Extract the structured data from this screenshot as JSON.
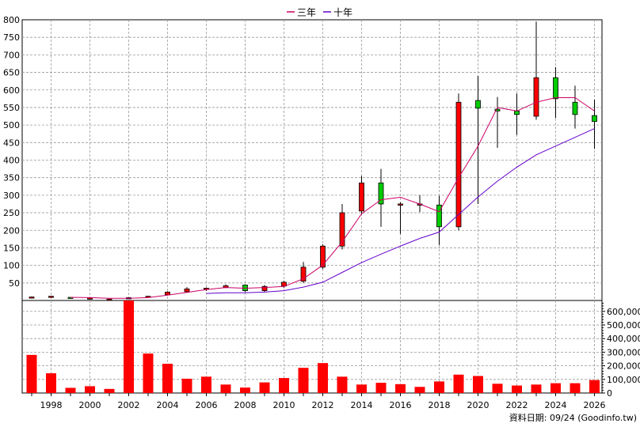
{
  "legend": [
    {
      "label": "三年",
      "color": "#cc0066"
    },
    {
      "label": "十年",
      "color": "#6600cc"
    }
  ],
  "credit": "資料日期: 09/24 (Goodinfo.tw)",
  "colors": {
    "up": "#ff0000",
    "down": "#00cc00",
    "wick": "#000000",
    "volume": "#ff0000",
    "ma3": "#cc0066",
    "ma10": "#6600cc",
    "grid": "#999999"
  },
  "chart_data": [
    {
      "type": "candlestick",
      "ylim": [
        0,
        800
      ],
      "y_ticks": [
        50,
        100,
        150,
        200,
        250,
        300,
        350,
        400,
        450,
        500,
        550,
        600,
        650,
        700,
        750,
        800
      ],
      "x_tick_labels": [
        "1998",
        "2000",
        "2002",
        "2004",
        "2006",
        "2008",
        "2010",
        "2012",
        "2014",
        "2016",
        "2018",
        "2020",
        "2022",
        "2024",
        "2026"
      ],
      "candles": [
        {
          "year": 1997,
          "open": 10,
          "high": 11,
          "low": 9,
          "close": 10
        },
        {
          "year": 1998,
          "open": 11,
          "high": 13,
          "low": 10,
          "close": 12
        },
        {
          "year": 1999,
          "open": 9,
          "high": 10,
          "low": 7,
          "close": 8
        },
        {
          "year": 2000,
          "open": 7,
          "high": 8,
          "low": 6,
          "close": 7
        },
        {
          "year": 2001,
          "open": 4,
          "high": 5,
          "low": 3,
          "close": 4
        },
        {
          "year": 2002,
          "open": 5,
          "high": 9,
          "low": 4,
          "close": 8
        },
        {
          "year": 2003,
          "open": 10,
          "high": 13,
          "low": 9,
          "close": 12
        },
        {
          "year": 2004,
          "open": 16,
          "high": 26,
          "low": 14,
          "close": 24
        },
        {
          "year": 2005,
          "open": 25,
          "high": 38,
          "low": 22,
          "close": 33
        },
        {
          "year": 2006,
          "open": 33,
          "high": 37,
          "low": 27,
          "close": 35
        },
        {
          "year": 2007,
          "open": 37,
          "high": 46,
          "low": 35,
          "close": 42
        },
        {
          "year": 2008,
          "open": 44,
          "high": 46,
          "low": 24,
          "close": 28
        },
        {
          "year": 2009,
          "open": 28,
          "high": 44,
          "low": 24,
          "close": 40
        },
        {
          "year": 2010,
          "open": 41,
          "high": 56,
          "low": 36,
          "close": 52
        },
        {
          "year": 2011,
          "open": 55,
          "high": 110,
          "low": 50,
          "close": 95
        },
        {
          "year": 2012,
          "open": 95,
          "high": 160,
          "low": 90,
          "close": 155
        },
        {
          "year": 2013,
          "open": 155,
          "high": 275,
          "low": 145,
          "close": 250
        },
        {
          "year": 2014,
          "open": 255,
          "high": 355,
          "low": 245,
          "close": 335
        },
        {
          "year": 2015,
          "open": 335,
          "high": 375,
          "low": 210,
          "close": 275
        },
        {
          "year": 2016,
          "open": 275,
          "high": 280,
          "low": 190,
          "close": 275
        },
        {
          "year": 2017,
          "open": 272,
          "high": 300,
          "low": 252,
          "close": 275
        },
        {
          "year": 2018,
          "open": 272,
          "high": 298,
          "low": 158,
          "close": 210
        },
        {
          "year": 2019,
          "open": 210,
          "high": 590,
          "low": 200,
          "close": 565
        },
        {
          "year": 2020,
          "open": 570,
          "high": 640,
          "low": 275,
          "close": 548
        },
        {
          "year": 2021,
          "open": 545,
          "high": 580,
          "low": 435,
          "close": 540
        },
        {
          "year": 2022,
          "open": 540,
          "high": 590,
          "low": 472,
          "close": 530
        },
        {
          "year": 2023,
          "open": 525,
          "high": 795,
          "low": 515,
          "close": 635
        },
        {
          "year": 2024,
          "open": 635,
          "high": 665,
          "low": 520,
          "close": 575
        },
        {
          "year": 2025,
          "open": 565,
          "high": 612,
          "low": 490,
          "close": 530
        },
        {
          "year": 2026,
          "open": 527,
          "high": 572,
          "low": 432,
          "close": 510
        }
      ],
      "series": [
        {
          "name": "三年",
          "points": [
            [
              1999,
              9
            ],
            [
              2000,
              8
            ],
            [
              2001,
              6
            ],
            [
              2002,
              6
            ],
            [
              2003,
              8
            ],
            [
              2004,
              15
            ],
            [
              2005,
              23
            ],
            [
              2006,
              31
            ],
            [
              2007,
              37
            ],
            [
              2008,
              35
            ],
            [
              2009,
              37
            ],
            [
              2010,
              40
            ],
            [
              2011,
              62
            ],
            [
              2012,
              101
            ],
            [
              2013,
              167
            ],
            [
              2014,
              247
            ],
            [
              2015,
              287
            ],
            [
              2016,
              294
            ],
            [
              2017,
              275
            ],
            [
              2018,
              253
            ],
            [
              2019,
              350
            ],
            [
              2020,
              440
            ],
            [
              2021,
              550
            ],
            [
              2022,
              540
            ],
            [
              2023,
              565
            ],
            [
              2024,
              578
            ],
            [
              2025,
              578
            ],
            [
              2026,
              540
            ]
          ]
        },
        {
          "name": "十年",
          "points": [
            [
              2006,
              20
            ],
            [
              2007,
              22
            ],
            [
              2008,
              22
            ],
            [
              2009,
              24
            ],
            [
              2010,
              28
            ],
            [
              2011,
              38
            ],
            [
              2012,
              52
            ],
            [
              2013,
              80
            ],
            [
              2014,
              108
            ],
            [
              2015,
              132
            ],
            [
              2016,
              155
            ],
            [
              2017,
              177
            ],
            [
              2018,
              195
            ],
            [
              2019,
              245
            ],
            [
              2020,
              295
            ],
            [
              2021,
              340
            ],
            [
              2022,
              380
            ],
            [
              2023,
              415
            ],
            [
              2024,
              440
            ],
            [
              2025,
              465
            ],
            [
              2026,
              490
            ]
          ]
        }
      ]
    },
    {
      "type": "bar",
      "ylim": [
        0,
        680000
      ],
      "y_ticks": [
        0,
        100000,
        200000,
        300000,
        400000,
        500000,
        600000
      ],
      "y_tick_labels": [
        "0",
        "100,000",
        "200,000",
        "300,000",
        "400,000",
        "500,000",
        "600,000"
      ],
      "categories": [
        1997,
        1998,
        1999,
        2000,
        2001,
        2002,
        2003,
        2004,
        2005,
        2006,
        2007,
        2008,
        2009,
        2010,
        2011,
        2012,
        2013,
        2014,
        2015,
        2016,
        2017,
        2018,
        2019,
        2020,
        2021,
        2022,
        2023,
        2024,
        2025,
        2026
      ],
      "values": [
        280000,
        145000,
        38000,
        50000,
        30000,
        690000,
        290000,
        215000,
        105000,
        120000,
        62000,
        40000,
        78000,
        110000,
        185000,
        220000,
        120000,
        62000,
        75000,
        65000,
        45000,
        85000,
        135000,
        125000,
        68000,
        55000,
        62000,
        72000,
        72000,
        95000
      ]
    }
  ]
}
